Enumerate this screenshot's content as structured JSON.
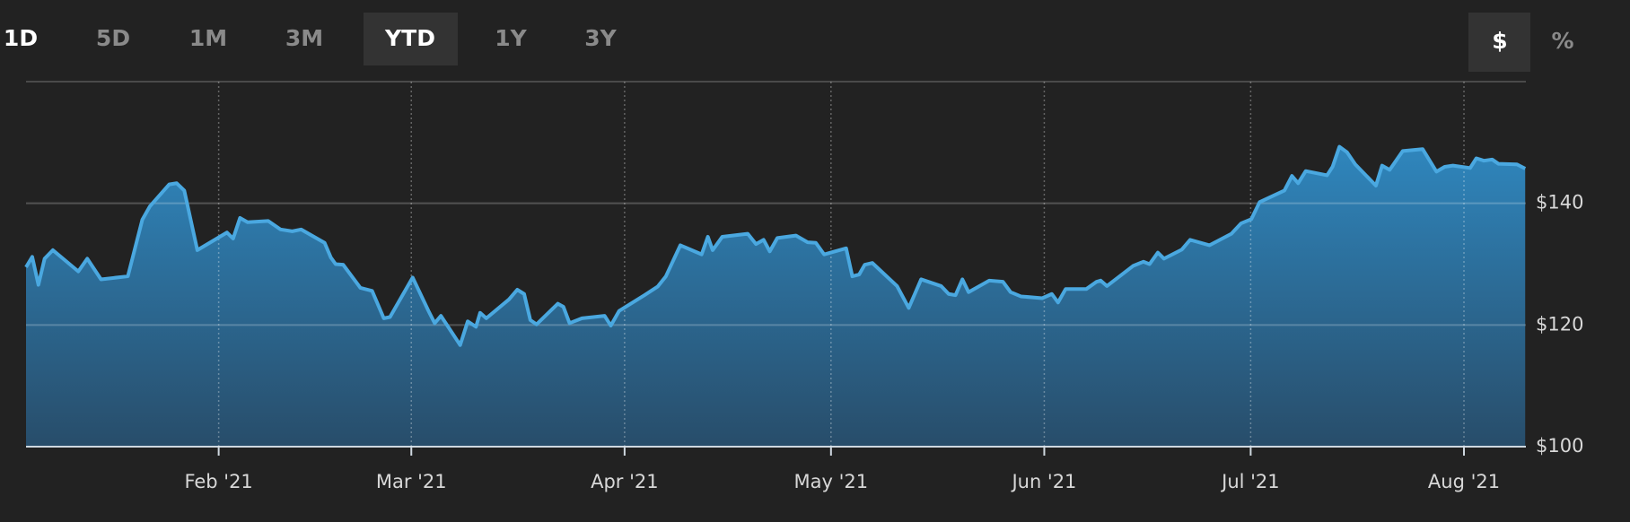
{
  "controls": {
    "ranges": [
      "1D",
      "5D",
      "1M",
      "3M",
      "YTD",
      "1Y",
      "3Y"
    ],
    "units": [
      "$",
      "%"
    ]
  },
  "chart_data": {
    "type": "area",
    "x": [
      4,
      4.9,
      5.8,
      6.7,
      7.9,
      11.6,
      12.9,
      14.9,
      18.8,
      20.9,
      22,
      24.8,
      25.9,
      27,
      28.9,
      33.2,
      34.1,
      35.1,
      36.2,
      39.2,
      41,
      42.7,
      44,
      47.4,
      48.3,
      49,
      50.1,
      52.6,
      54.3,
      56,
      56.9,
      60.2,
      62.5,
      63.4,
      64.3,
      67.1,
      68.2,
      69.4,
      70,
      70.9,
      74.2,
      75.4,
      76.4,
      77.3,
      78.2,
      81.3,
      82.1,
      83,
      84.8,
      88.1,
      89,
      90.2,
      93.9,
      95.8,
      97,
      99.1,
      102.2,
      103.1,
      103.8,
      105.2,
      108.9,
      110.1,
      111.2,
      112.1,
      113.2,
      115.9,
      117.6,
      118.8,
      120,
      123.2,
      124.1,
      125.1,
      125.9,
      127,
      130.6,
      132.3,
      134.1,
      137,
      138.1,
      139.1,
      140.1,
      141,
      144,
      146,
      147.1,
      148.6,
      151.7,
      153.1,
      154,
      155.1,
      158.1,
      159.6,
      160.2,
      161.1,
      164.9,
      166.4,
      167.3,
      168.5,
      169.4,
      172,
      173.2,
      176,
      179.2,
      180.6,
      182.1,
      183.3,
      186.9,
      188,
      188.9,
      190,
      193.1,
      193.9,
      194.9,
      196,
      197.2,
      200.2,
      201.1,
      202.2,
      204.1,
      207,
      209,
      210.2,
      211.4,
      213.9,
      214.8,
      215.9,
      217.1,
      218,
      220.7,
      221.9
    ],
    "values": [
      129.5,
      131.2,
      126.6,
      130.9,
      132.3,
      128.8,
      130.9,
      127.5,
      128.0,
      137.3,
      139.5,
      143.1,
      143.3,
      142.1,
      132.3,
      135.2,
      134.2,
      137.6,
      136.9,
      137.1,
      135.7,
      135.4,
      135.7,
      133.5,
      131.1,
      130.0,
      129.9,
      126.1,
      125.6,
      121.1,
      121.3,
      127.8,
      122.3,
      120.3,
      121.5,
      116.7,
      120.6,
      119.7,
      122.0,
      121.1,
      124.2,
      125.8,
      125.1,
      120.8,
      120.1,
      123.5,
      123.0,
      120.3,
      121.1,
      121.5,
      119.9,
      122.3,
      124.9,
      126.3,
      128.0,
      133.1,
      131.6,
      134.5,
      132.3,
      134.5,
      135.0,
      133.3,
      134.0,
      132.1,
      134.3,
      134.7,
      133.6,
      133.5,
      131.6,
      132.6,
      128.0,
      128.3,
      129.9,
      130.2,
      126.4,
      122.8,
      127.5,
      126.4,
      125.1,
      124.9,
      127.5,
      125.4,
      127.3,
      127.1,
      125.4,
      124.7,
      124.4,
      125.1,
      123.7,
      125.9,
      125.9,
      127.1,
      127.3,
      126.4,
      129.7,
      130.4,
      130.0,
      131.9,
      130.9,
      132.4,
      134.0,
      133.1,
      135.0,
      136.7,
      137.4,
      140.2,
      142.1,
      144.5,
      143.3,
      145.3,
      144.6,
      146.0,
      149.3,
      148.4,
      146.4,
      142.9,
      146.2,
      145.5,
      148.6,
      148.9,
      145.2,
      146.0,
      146.2,
      145.8,
      147.4,
      147.0,
      147.2,
      146.5,
      146.4,
      145.7
    ],
    "color": "#4aa8e0",
    "xlim": [
      4,
      222
    ],
    "xticks": [
      {
        "value": 32,
        "label": "Feb '21"
      },
      {
        "value": 60,
        "label": "Mar '21"
      },
      {
        "value": 91,
        "label": "Apr '21"
      },
      {
        "value": 121,
        "label": "May '21"
      },
      {
        "value": 152,
        "label": "Jun '21"
      },
      {
        "value": 182,
        "label": "Jul '21"
      },
      {
        "value": 213,
        "label": "Aug '21"
      }
    ],
    "ylim": [
      100,
      160
    ],
    "yticks": [
      {
        "value": 100,
        "label": "$100"
      },
      {
        "value": 120,
        "label": "$120"
      },
      {
        "value": 140,
        "label": "$140"
      }
    ],
    "grid": true
  }
}
